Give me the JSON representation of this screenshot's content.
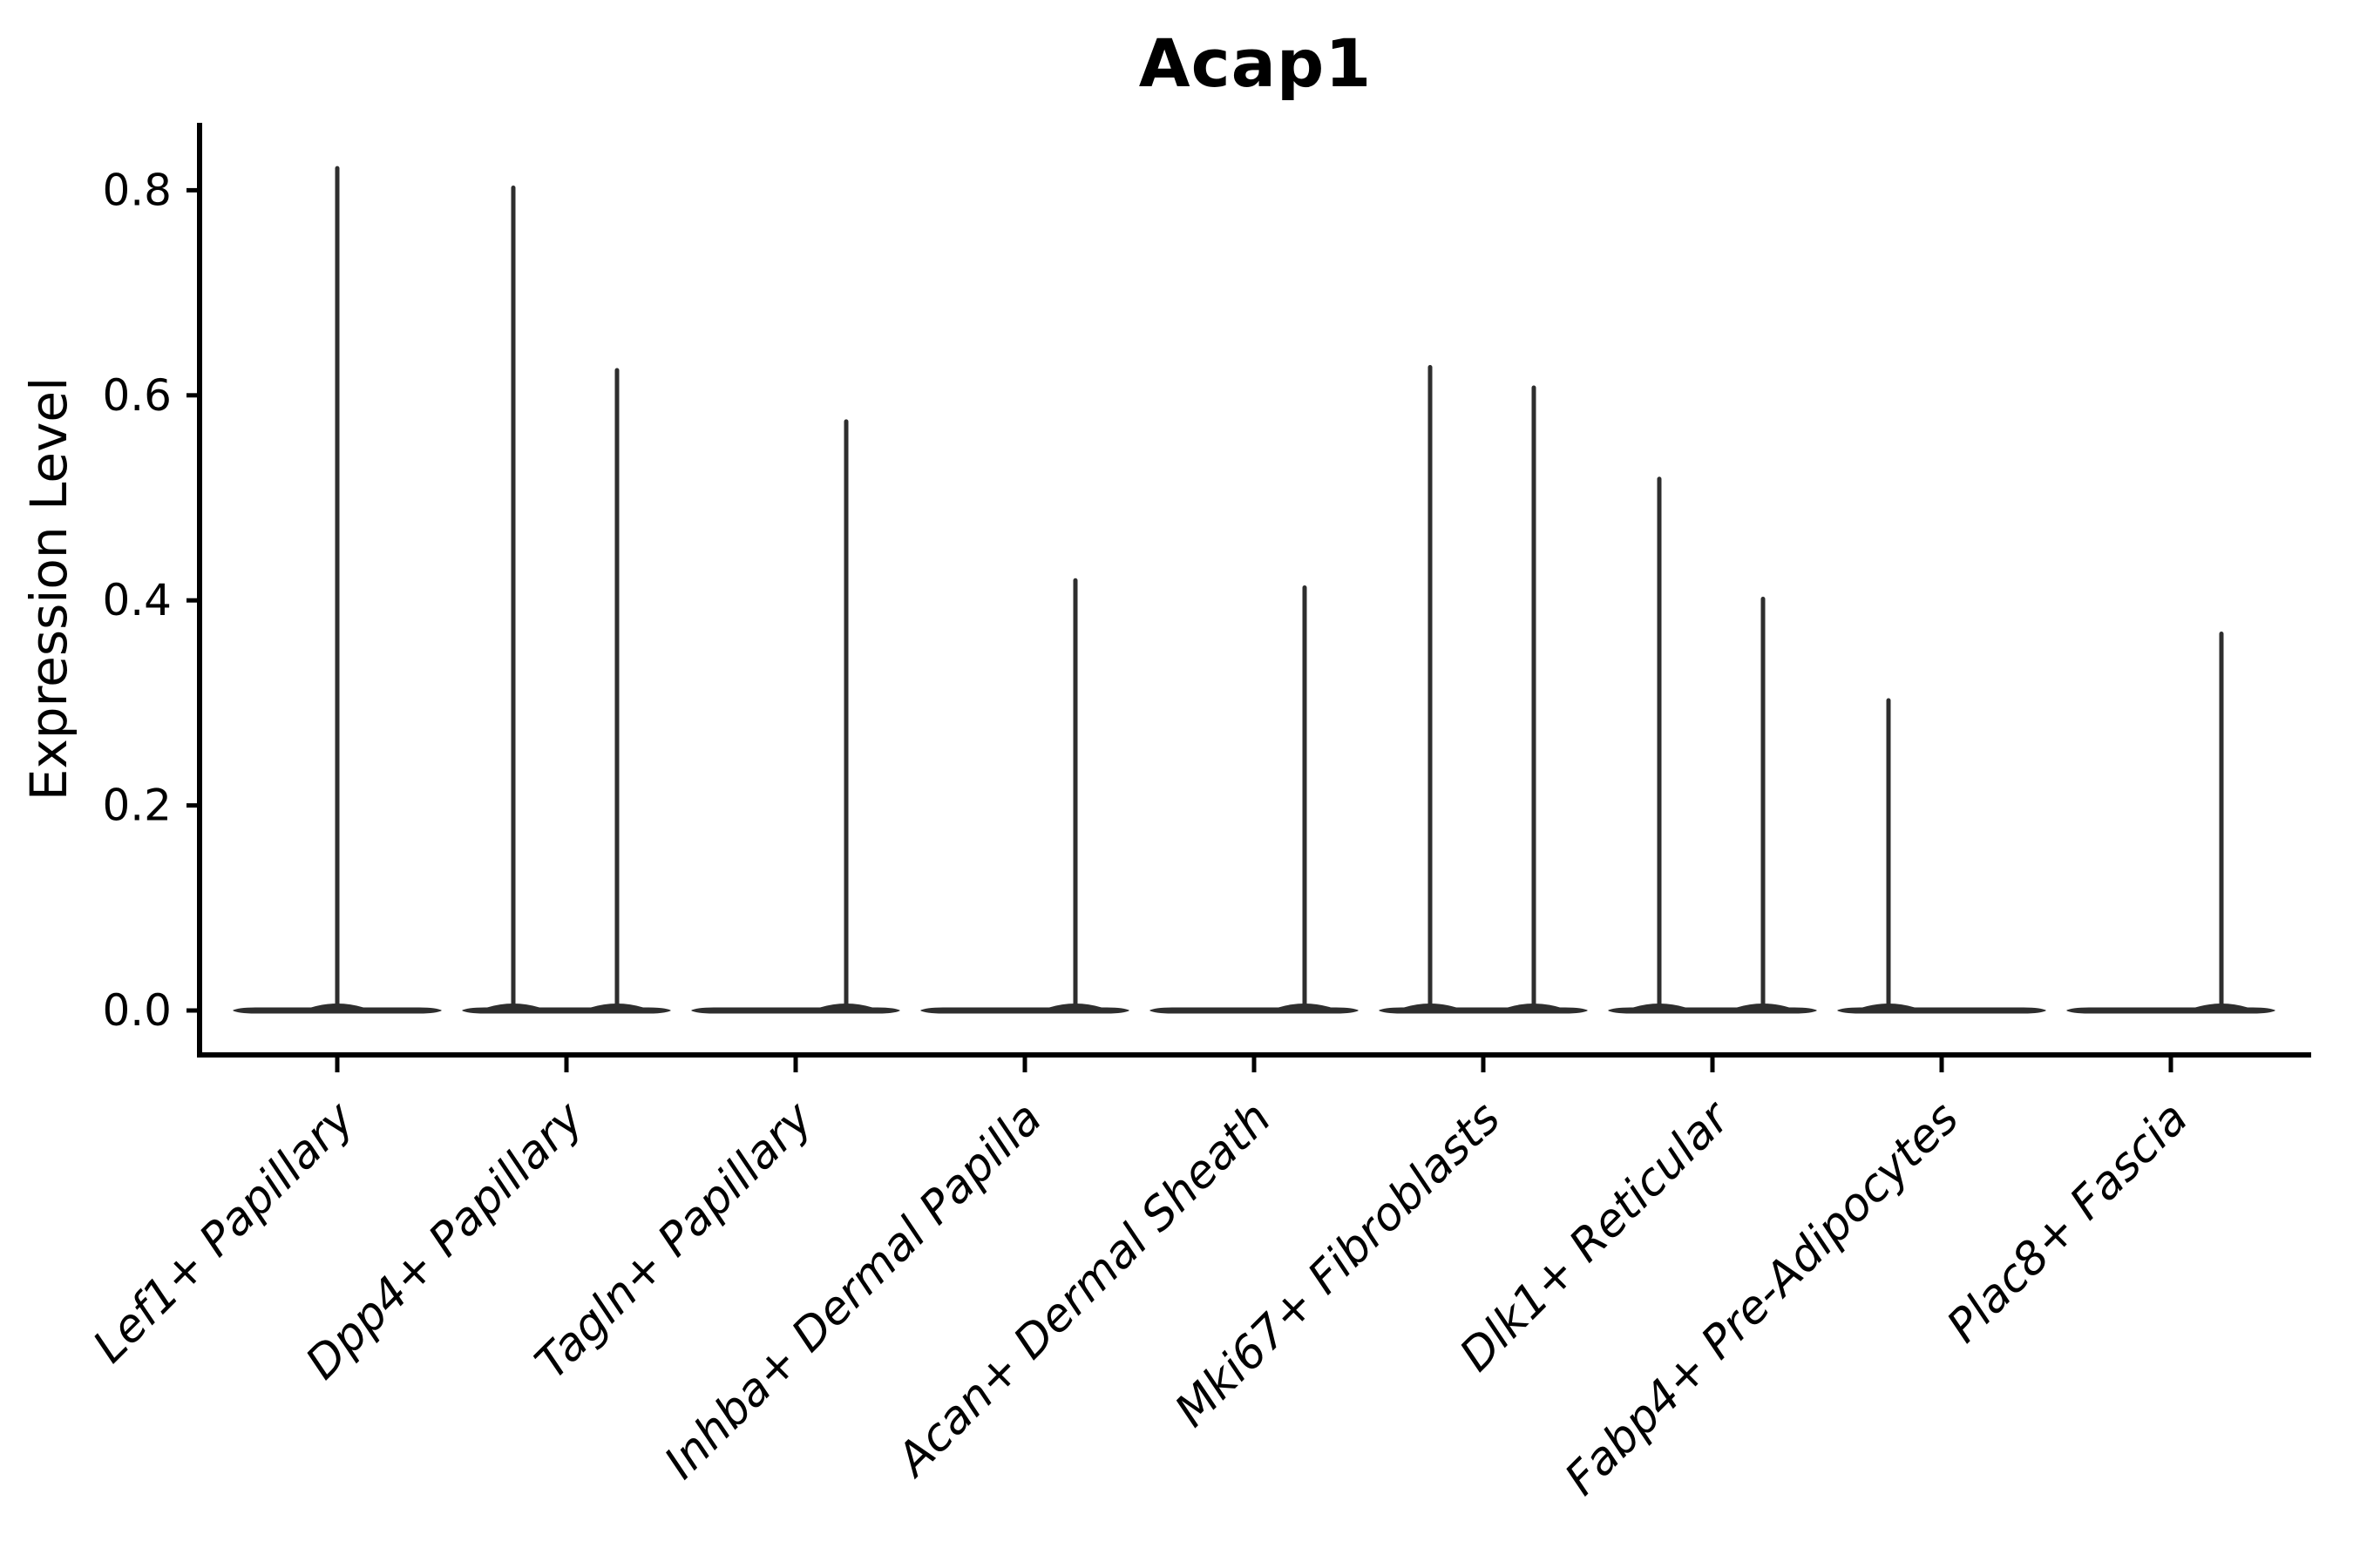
{
  "chart_data": {
    "type": "violin",
    "title": "Acap1",
    "xlabel": "",
    "ylabel": "Expression Level",
    "categories": [
      "Lef1+ Papillary",
      "Dpp4+ Papillary",
      "Tagln+ Papillary",
      "Inhba+ Dermal Papilla",
      "Acan+ Dermal Sheath",
      "Mki67+ Fibroblasts",
      "Dlk1+ Reticular",
      "Fabp4+ Pre-Adipocytes",
      "Plac8+ Fascia"
    ],
    "ytick_labels": [
      "0.0",
      "0.2",
      "0.4",
      "0.6",
      "0.8"
    ],
    "ytick_values": [
      0.0,
      0.2,
      0.4,
      0.6,
      0.8
    ],
    "ylim": [
      -0.046,
      0.866
    ],
    "grid": false,
    "legend": null,
    "description": "Violin plot; each category is a flat near-zero density base with thin spikes reaching the maximum expression values",
    "violins": [
      {
        "category": "Lef1+ Papillary",
        "spikes": [
          {
            "offset": 0.0,
            "peak": 0.824
          }
        ]
      },
      {
        "category": "Dpp4+ Papillary",
        "spikes": [
          {
            "offset": -0.232,
            "peak": 0.805
          },
          {
            "offset": 0.219,
            "peak": 0.627
          }
        ]
      },
      {
        "category": "Tagln+ Papillary",
        "spikes": [
          {
            "offset": 0.219,
            "peak": 0.577
          }
        ]
      },
      {
        "category": "Inhba+ Dermal Papilla",
        "spikes": [
          {
            "offset": 0.219,
            "peak": 0.422
          }
        ]
      },
      {
        "category": "Acan+ Dermal Sheath",
        "spikes": [
          {
            "offset": 0.219,
            "peak": 0.415
          }
        ]
      },
      {
        "category": "Mki67+ Fibroblasts",
        "spikes": [
          {
            "offset": -0.232,
            "peak": 0.63
          },
          {
            "offset": 0.219,
            "peak": 0.61
          }
        ]
      },
      {
        "category": "Dlk1+ Reticular",
        "spikes": [
          {
            "offset": -0.232,
            "peak": 0.521
          },
          {
            "offset": 0.219,
            "peak": 0.404
          }
        ]
      },
      {
        "category": "Fabp4+ Pre-Adipocytes",
        "spikes": [
          {
            "offset": -0.232,
            "peak": 0.305
          }
        ]
      },
      {
        "category": "Plac8+ Fascia",
        "spikes": [
          {
            "offset": 0.219,
            "peak": 0.37
          }
        ]
      }
    ],
    "baseline": {
      "value": 0.0,
      "halfwidth_frac": 0.456
    }
  },
  "colors": {
    "violin": "#2e2e2e",
    "axis": "#000000",
    "text": "#000000",
    "background": "#ffffff"
  }
}
